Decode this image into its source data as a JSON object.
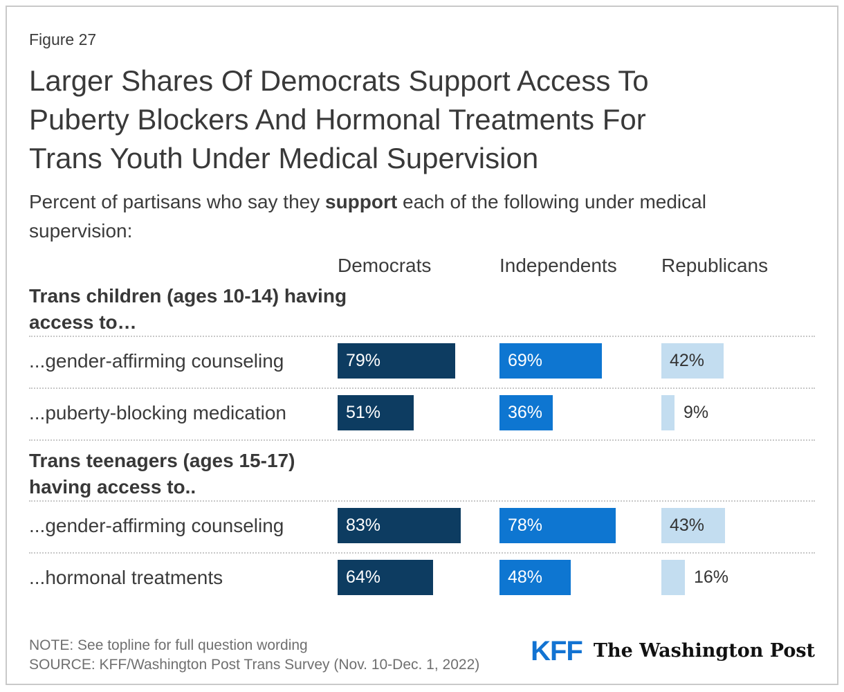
{
  "figure_label": "Figure 27",
  "title_lines": [
    "Larger Shares Of Democrats Support Access To",
    "Puberty Blockers And Hormonal Treatments For",
    "Trans Youth Under Medical Supervision"
  ],
  "subtitle": {
    "pre": "Percent of partisans who say they ",
    "bold": "support",
    "post": " each of the following under medical",
    "line2": "supervision:"
  },
  "columns": [
    "Democrats",
    "Independents",
    "Republicans"
  ],
  "colors": {
    "democrats": "#0d3c61",
    "independents": "#0e76d1",
    "republicans": "#c3ddf0",
    "kff_blue": "#1273d2",
    "dotted_line": "#c7c7c7",
    "outside_label": "#333333"
  },
  "groups": [
    {
      "header_lines": [
        "Trans children (ages 10-14) having",
        "access to…"
      ],
      "rows": [
        {
          "label": "...gender-affirming counseling",
          "values": [
            79,
            69,
            42
          ]
        },
        {
          "label": "...puberty-blocking medication",
          "values": [
            51,
            36,
            9
          ]
        }
      ]
    },
    {
      "header_lines": [
        "Trans teenagers (ages 15-17)",
        "having access to.."
      ],
      "rows": [
        {
          "label": "...gender-affirming counseling",
          "values": [
            83,
            78,
            43
          ]
        },
        {
          "label": "...hormonal treatments",
          "values": [
            64,
            48,
            16
          ]
        }
      ]
    }
  ],
  "chart_data": {
    "type": "bar",
    "title": "Larger Shares Of Democrats Support Access To Puberty Blockers And Hormonal Treatments For Trans Youth Under Medical Supervision",
    "subtitle": "Percent of partisans who say they support each of the following under medical supervision:",
    "categories": [
      "Trans children (ages 10-14) having access to... gender-affirming counseling",
      "Trans children (ages 10-14) having access to... puberty-blocking medication",
      "Trans teenagers (ages 15-17) having access to... gender-affirming counseling",
      "Trans teenagers (ages 15-17) having access to... hormonal treatments"
    ],
    "series": [
      {
        "name": "Democrats",
        "values": [
          79,
          51,
          83,
          64
        ]
      },
      {
        "name": "Independents",
        "values": [
          69,
          36,
          78,
          48
        ]
      },
      {
        "name": "Republicans",
        "values": [
          42,
          9,
          43,
          16
        ]
      }
    ],
    "unit": "%",
    "xlim": [
      0,
      100
    ],
    "grid": false,
    "legend_position": "column headers above bars",
    "orientation": "horizontal"
  },
  "footer": {
    "note": "NOTE: See topline for full question wording",
    "source": "SOURCE: KFF/Washington Post Trans Survey (Nov. 10-Dec. 1, 2022)"
  },
  "logos": {
    "kff": "KFF",
    "wapo": "The Washington Post"
  }
}
